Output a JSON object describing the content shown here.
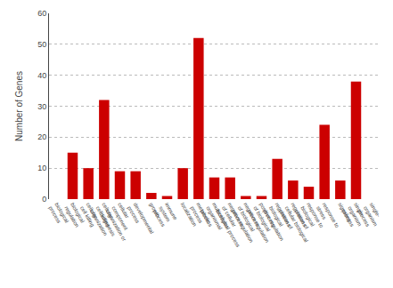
{
  "chart_data": {
    "type": "bar",
    "categories": [
      "biological\nprocess",
      "biological\nregulation",
      "cellular\ncell killing",
      "cellular\ncell killing\norganization",
      "cellular\ncomponent\norganization or\nbiogenesis",
      "developmental\nprocess",
      "growth",
      "immune\nsystem\nprocess",
      "localization",
      "metabolic\nprocess",
      "multicellular\norganismal\nprocess",
      "negative regulation\nof cellular\nbiological process",
      "negative regulation\nof biological\nprocess",
      "positive regulation\nof biological\nprocess",
      "regulation of\nbiological\nprocess",
      "regulation of\ncellular biological\nprocess",
      "response to\nbiological\nprocess",
      "response to\nstress",
      "signaling",
      "single-\norganism\nprocess",
      "single-\norganism\nprocess"
    ],
    "values": [
      0,
      15,
      10,
      32,
      9,
      9,
      2,
      1,
      10,
      52,
      7,
      7,
      1,
      1,
      13,
      6,
      4,
      24,
      6,
      38,
      0
    ],
    "color": "#cc0000",
    "ylabel": "Number of Genes",
    "ylim": [
      0,
      60
    ],
    "yticks": [
      0,
      10,
      20,
      30,
      40,
      50,
      60
    ],
    "grid": true
  }
}
